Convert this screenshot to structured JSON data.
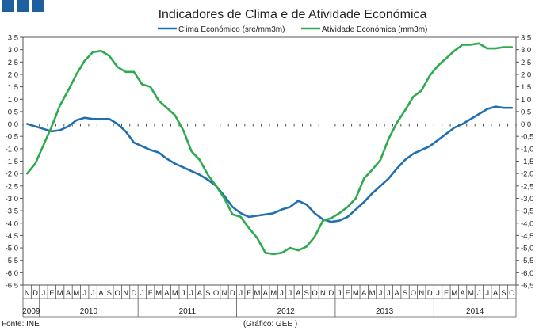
{
  "header": {
    "brand_color": "#1f5f9f",
    "blocks": 3
  },
  "chart_data": {
    "type": "line",
    "title": "Indicadores de Clima e de Atividade Económica",
    "ylim": [
      -6.5,
      3.5
    ],
    "yticks": [
      "3,5",
      "3,0",
      "2,5",
      "2,0",
      "1,5",
      "1,0",
      "0,5",
      "0,0",
      "-0,5",
      "-1,0",
      "-1,5",
      "-2,0",
      "-2,5",
      "-3,0",
      "-3,5",
      "-4,0",
      "-4,5",
      "-5,0",
      "-5,5",
      "-6,0",
      "-6,5"
    ],
    "months": [
      "N",
      "D",
      "J",
      "F",
      "M",
      "A",
      "M",
      "J",
      "J",
      "A",
      "S",
      "O",
      "N",
      "D",
      "J",
      "F",
      "M",
      "A",
      "M",
      "J",
      "J",
      "A",
      "S",
      "O",
      "N",
      "D",
      "J",
      "F",
      "M",
      "A",
      "M",
      "J",
      "J",
      "A",
      "S",
      "O",
      "N",
      "D",
      "J",
      "F",
      "M",
      "A",
      "M",
      "J",
      "J",
      "A",
      "S",
      "O",
      "N",
      "D",
      "J",
      "F",
      "M",
      "A",
      "M",
      "J",
      "J",
      "A",
      "S",
      "O"
    ],
    "years": [
      {
        "label": "2009",
        "start": 0,
        "end": 1
      },
      {
        "label": "2010",
        "start": 2,
        "end": 13
      },
      {
        "label": "2011",
        "start": 14,
        "end": 25
      },
      {
        "label": "2012",
        "start": 26,
        "end": 37
      },
      {
        "label": "2013",
        "start": 38,
        "end": 49
      },
      {
        "label": "2014",
        "start": 50,
        "end": 59
      }
    ],
    "series": [
      {
        "name": "Clima Económico (sre/mm3m)",
        "color": "#1f6fb2",
        "values": [
          0.0,
          -0.1,
          -0.2,
          -0.3,
          -0.25,
          -0.1,
          0.15,
          0.25,
          0.2,
          0.2,
          0.2,
          0.0,
          -0.3,
          -0.75,
          -0.9,
          -1.05,
          -1.15,
          -1.4,
          -1.6,
          -1.75,
          -1.9,
          -2.05,
          -2.25,
          -2.5,
          -2.9,
          -3.35,
          -3.6,
          -3.75,
          -3.7,
          -3.65,
          -3.6,
          -3.45,
          -3.35,
          -3.1,
          -3.25,
          -3.6,
          -3.85,
          -3.95,
          -3.9,
          -3.75,
          -3.45,
          -3.15,
          -2.8,
          -2.5,
          -2.2,
          -1.8,
          -1.45,
          -1.2,
          -1.05,
          -0.9,
          -0.65,
          -0.4,
          -0.15,
          0.0,
          0.2,
          0.4,
          0.6,
          0.7,
          0.65,
          0.65
        ]
      },
      {
        "name": "Atividade Económica (mm3m)",
        "color": "#2eaa4e",
        "values": [
          -2.0,
          -1.6,
          -0.85,
          -0.1,
          0.75,
          1.35,
          2.0,
          2.55,
          2.9,
          2.95,
          2.75,
          2.3,
          2.1,
          2.1,
          1.6,
          1.5,
          0.95,
          0.65,
          0.35,
          -0.25,
          -1.1,
          -1.45,
          -2.05,
          -2.5,
          -3.0,
          -3.65,
          -3.75,
          -4.2,
          -4.6,
          -5.2,
          -5.25,
          -5.2,
          -5.0,
          -5.1,
          -4.95,
          -4.55,
          -3.9,
          -3.8,
          -3.6,
          -3.35,
          -3.0,
          -2.2,
          -1.85,
          -1.45,
          -0.6,
          0.05,
          0.55,
          1.1,
          1.35,
          1.95,
          2.35,
          2.65,
          2.95,
          3.2,
          3.2,
          3.25,
          3.05,
          3.05,
          3.1,
          3.1
        ]
      }
    ],
    "source": "Fonte: INE",
    "credit": "(Gráfico: GEE )"
  }
}
